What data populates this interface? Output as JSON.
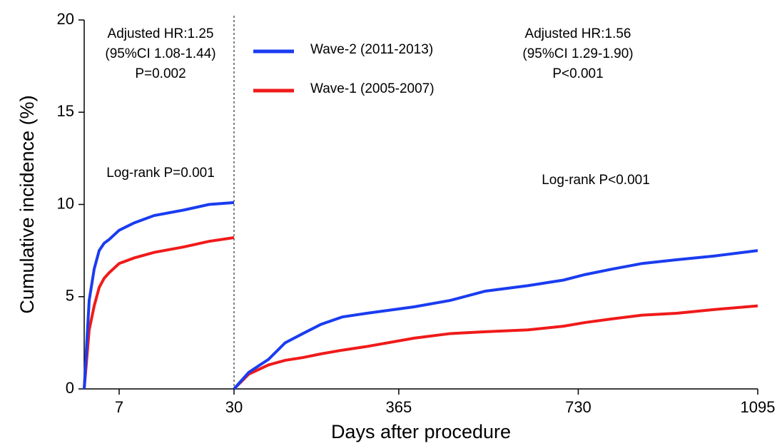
{
  "chart_data": [
    {
      "type": "line",
      "y_label": "Cumulative incidence (%)",
      "annotations": [
        "Adjusted HR:1.25",
        "(95%CI 1.08-1.44)",
        "P=0.002",
        "Log-rank P=0.001"
      ],
      "x": [
        0,
        1,
        2,
        3,
        4,
        5,
        7,
        10,
        14,
        20,
        25,
        30
      ],
      "series": [
        {
          "color": "#1a3cf0",
          "values": [
            0,
            4.8,
            6.5,
            7.5,
            7.9,
            8.1,
            8.6,
            9.0,
            9.4,
            9.7,
            10.0,
            10.1
          ]
        },
        {
          "color": "#f01a1a",
          "values": [
            0,
            3.2,
            4.5,
            5.5,
            6.0,
            6.3,
            6.8,
            7.1,
            7.4,
            7.7,
            8.0,
            8.2
          ]
        }
      ],
      "xlim": [
        0,
        30
      ],
      "xticks": [
        7,
        30
      ],
      "ylim": [
        0,
        20
      ],
      "yticks": [
        0,
        5,
        10,
        15,
        20
      ]
    },
    {
      "type": "line",
      "x_label": "Days after procedure",
      "annotations": [
        "Adjusted HR:1.56",
        "(95%CI 1.29-1.90)",
        "P<0.001",
        "Log-rank P<0.001"
      ],
      "x": [
        30,
        60,
        100,
        134,
        170,
        207,
        250,
        300,
        396,
        470,
        541,
        628,
        700,
        744,
        800,
        860,
        930,
        1005,
        1095
      ],
      "series": [
        {
          "name": "Wave-2 (2011-2013)",
          "color": "#1a3cf0",
          "values": [
            0,
            0.9,
            1.6,
            2.5,
            3.0,
            3.5,
            3.9,
            4.1,
            4.45,
            4.8,
            5.3,
            5.6,
            5.9,
            6.2,
            6.5,
            6.8,
            7.0,
            7.2,
            7.5
          ]
        },
        {
          "name": "Wave-1 (2005-2007)",
          "color": "#f01a1a",
          "values": [
            0,
            0.8,
            1.3,
            1.55,
            1.7,
            1.9,
            2.1,
            2.3,
            2.75,
            3.0,
            3.1,
            3.2,
            3.4,
            3.6,
            3.8,
            4.0,
            4.1,
            4.3,
            4.5
          ]
        }
      ],
      "xlim": [
        30,
        1095
      ],
      "xticks": [
        365,
        730,
        1095
      ],
      "ylim": [
        0,
        20
      ]
    }
  ]
}
